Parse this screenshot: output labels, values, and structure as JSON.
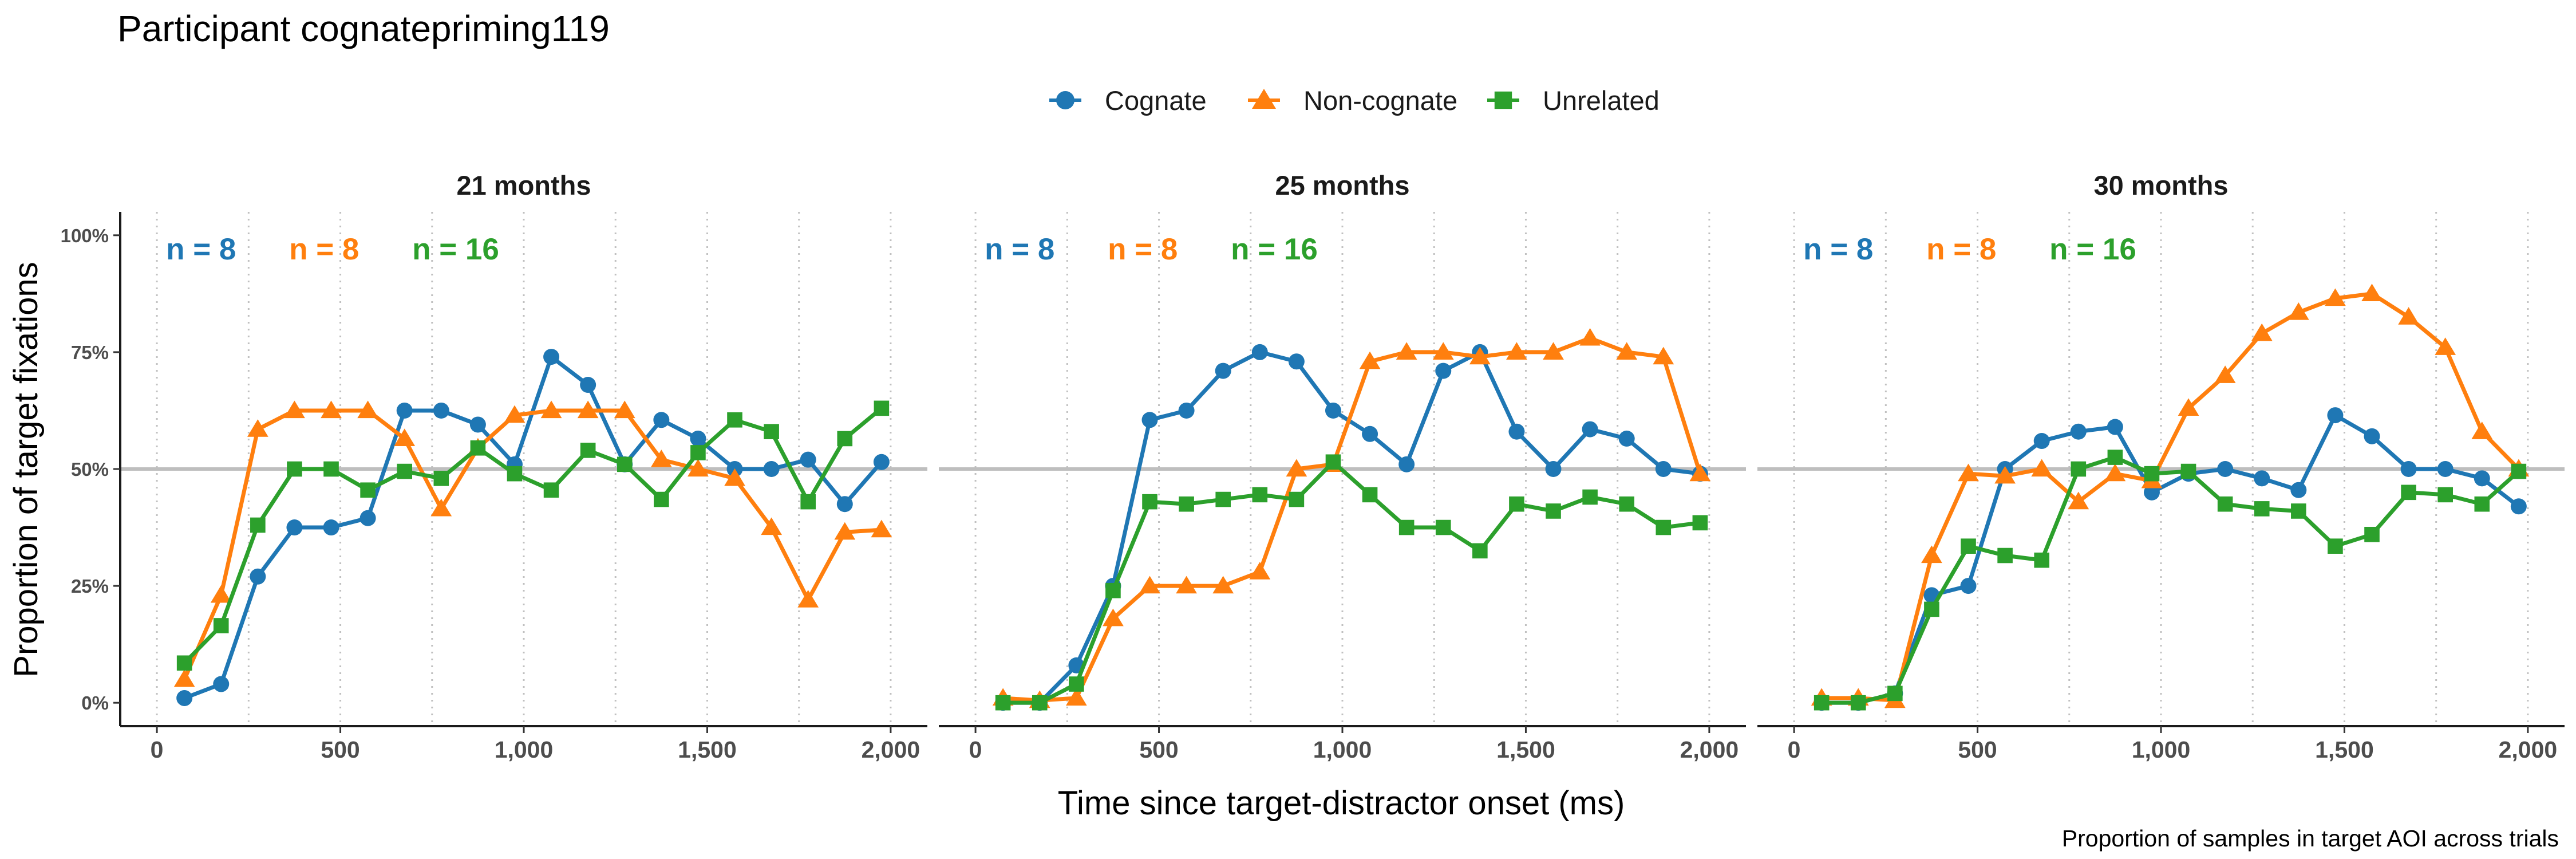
{
  "chart_data": {
    "type": "line",
    "title": "Participant cognatepriming119",
    "xlabel": "Time since target-distractor onset (ms)",
    "ylabel": "Proportion of target fixations",
    "caption": "Proportion of samples in target AOI across trials",
    "xlim": [
      -100,
      2100
    ],
    "ylim": [
      -0.05,
      1.05
    ],
    "x_ticks": [
      0,
      500,
      1000,
      1500,
      2000
    ],
    "x_tick_labels": [
      "0",
      "500",
      "1,000",
      "1,500",
      "2,000"
    ],
    "y_ticks": [
      0,
      0.25,
      0.5,
      0.75,
      1.0
    ],
    "y_tick_labels": [
      "0%",
      "25%",
      "50%",
      "75%",
      "100%"
    ],
    "reference_line": 0.5,
    "grid": "vertical dotted at x ticks and midpoints",
    "legend_position": "top",
    "legend": [
      {
        "name": "Cognate",
        "color": "#1f77b4",
        "marker": "circle"
      },
      {
        "name": "Non-cognate",
        "color": "#ff7f0e",
        "marker": "triangle"
      },
      {
        "name": "Unrelated",
        "color": "#2ca02c",
        "marker": "square"
      }
    ],
    "x": [
      75,
      175,
      275,
      375,
      475,
      575,
      675,
      775,
      875,
      975,
      1075,
      1175,
      1275,
      1375,
      1475,
      1575,
      1675,
      1775,
      1875,
      1975
    ],
    "panels": [
      {
        "label": "21 months",
        "counts": [
          {
            "label": "n = 8",
            "color": "#1f77b4"
          },
          {
            "label": "n = 8",
            "color": "#ff7f0e"
          },
          {
            "label": "n = 16",
            "color": "#2ca02c"
          }
        ],
        "series": [
          {
            "name": "Cognate",
            "values": [
              0.01,
              0.04,
              0.27,
              0.375,
              0.375,
              0.395,
              0.625,
              0.625,
              0.595,
              0.51,
              0.74,
              0.68,
              0.51,
              0.605,
              0.565,
              0.5,
              0.5,
              0.52,
              0.425,
              0.515
            ]
          },
          {
            "name": "Non-cognate",
            "values": [
              0.05,
              0.23,
              0.585,
              0.625,
              0.625,
              0.625,
              0.565,
              0.415,
              0.545,
              0.615,
              0.625,
              0.625,
              0.625,
              0.52,
              0.5,
              0.48,
              0.375,
              0.22,
              0.365,
              0.37
            ]
          },
          {
            "name": "Unrelated",
            "values": [
              0.085,
              0.165,
              0.38,
              0.5,
              0.5,
              0.455,
              0.495,
              0.48,
              0.545,
              0.49,
              0.455,
              0.54,
              0.51,
              0.435,
              0.535,
              0.605,
              0.58,
              0.43,
              0.565,
              0.63
            ]
          }
        ]
      },
      {
        "label": "25 months",
        "counts": [
          {
            "label": "n = 8",
            "color": "#1f77b4"
          },
          {
            "label": "n = 8",
            "color": "#ff7f0e"
          },
          {
            "label": "n = 16",
            "color": "#2ca02c"
          }
        ],
        "series": [
          {
            "name": "Cognate",
            "values": [
              0.0,
              0.0,
              0.08,
              0.25,
              0.605,
              0.625,
              0.71,
              0.75,
              0.73,
              0.625,
              0.575,
              0.51,
              0.71,
              0.75,
              0.58,
              0.5,
              0.585,
              0.565,
              0.5,
              0.49
            ]
          },
          {
            "name": "Non-cognate",
            "values": [
              0.01,
              0.005,
              0.01,
              0.18,
              0.25,
              0.25,
              0.25,
              0.28,
              0.5,
              0.51,
              0.73,
              0.75,
              0.75,
              0.74,
              0.75,
              0.75,
              0.78,
              0.75,
              0.74,
              0.49
            ]
          },
          {
            "name": "Unrelated",
            "values": [
              0.0,
              0.0,
              0.04,
              0.24,
              0.43,
              0.425,
              0.435,
              0.445,
              0.435,
              0.515,
              0.445,
              0.375,
              0.375,
              0.325,
              0.425,
              0.41,
              0.44,
              0.425,
              0.375,
              0.385
            ]
          }
        ]
      },
      {
        "label": "30 months",
        "counts": [
          {
            "label": "n = 8",
            "color": "#1f77b4"
          },
          {
            "label": "n = 8",
            "color": "#ff7f0e"
          },
          {
            "label": "n = 16",
            "color": "#2ca02c"
          }
        ],
        "series": [
          {
            "name": "Cognate",
            "values": [
              0.0,
              0.0,
              0.02,
              0.23,
              0.25,
              0.5,
              0.56,
              0.58,
              0.59,
              0.45,
              0.49,
              0.5,
              0.48,
              0.455,
              0.615,
              0.57,
              0.5,
              0.5,
              0.48,
              0.42
            ]
          },
          {
            "name": "Non-cognate",
            "values": [
              0.01,
              0.01,
              0.005,
              0.315,
              0.49,
              0.485,
              0.5,
              0.43,
              0.49,
              0.475,
              0.63,
              0.7,
              0.79,
              0.835,
              0.865,
              0.875,
              0.825,
              0.76,
              0.58,
              0.5
            ]
          },
          {
            "name": "Unrelated",
            "values": [
              0.0,
              0.0,
              0.02,
              0.2,
              0.335,
              0.315,
              0.305,
              0.5,
              0.525,
              0.49,
              0.495,
              0.425,
              0.415,
              0.41,
              0.335,
              0.36,
              0.45,
              0.445,
              0.425,
              0.495
            ]
          }
        ]
      }
    ]
  }
}
